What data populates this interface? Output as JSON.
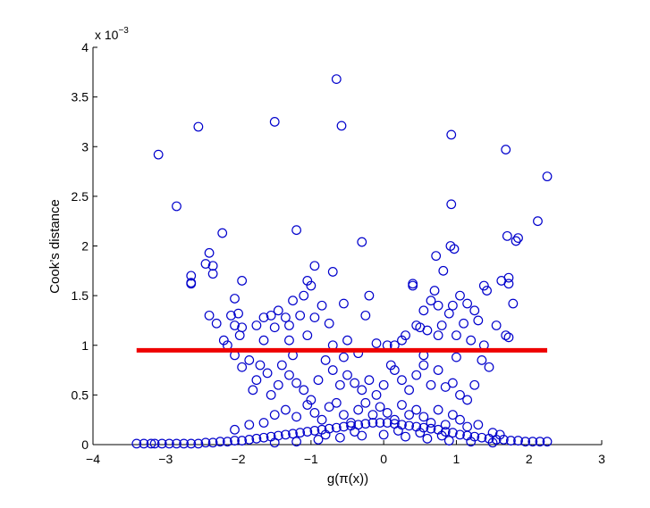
{
  "chart_data": {
    "type": "scatter",
    "xlabel": "g(π(x))",
    "ylabel": "Cook’s distance",
    "xlim": [
      -4,
      3
    ],
    "ylim": [
      0,
      4
    ],
    "x_ticks": [
      "−4",
      "−3",
      "−2",
      "−1",
      "0",
      "1",
      "2",
      "3"
    ],
    "y_ticks": [
      "0",
      "0.5",
      "1",
      "1.5",
      "2",
      "2.5",
      "3",
      "3.5",
      "4"
    ],
    "y_exponent_label": "x 10",
    "y_exponent_power": "−3",
    "y_scale_factor": 0.001,
    "marker": "open-circle",
    "marker_color": "#0000CC",
    "grid": false,
    "threshold_line": {
      "y": 0.95,
      "x": [
        -3.4,
        2.25
      ],
      "color": "#EE0000"
    },
    "points": [
      [
        -3.1,
        2.92
      ],
      [
        -2.85,
        2.4
      ],
      [
        -2.55,
        3.2
      ],
      [
        -2.22,
        2.13
      ],
      [
        -2.4,
        1.93
      ],
      [
        -2.35,
        1.8
      ],
      [
        -2.45,
        1.82
      ],
      [
        -2.65,
        1.7
      ],
      [
        -2.65,
        1.63
      ],
      [
        -2.65,
        1.62
      ],
      [
        -2.35,
        1.72
      ],
      [
        -2.05,
        1.47
      ],
      [
        -1.95,
        1.65
      ],
      [
        -2.0,
        1.32
      ],
      [
        -2.1,
        1.3
      ],
      [
        -2.4,
        1.3
      ],
      [
        -2.3,
        1.22
      ],
      [
        -2.05,
        1.2
      ],
      [
        -1.95,
        1.18
      ],
      [
        -1.98,
        1.1
      ],
      [
        -2.2,
        1.05
      ],
      [
        -2.15,
        1.0
      ],
      [
        -1.5,
        3.25
      ],
      [
        -0.65,
        3.68
      ],
      [
        -0.58,
        3.21
      ],
      [
        -1.2,
        2.16
      ],
      [
        -0.7,
        1.74
      ],
      [
        -0.95,
        1.8
      ],
      [
        -1.05,
        1.65
      ],
      [
        -1.0,
        1.6
      ],
      [
        -1.1,
        1.5
      ],
      [
        -1.25,
        1.45
      ],
      [
        -1.45,
        1.35
      ],
      [
        -1.55,
        1.3
      ],
      [
        -1.65,
        1.28
      ],
      [
        -1.35,
        1.28
      ],
      [
        -1.15,
        1.3
      ],
      [
        -0.95,
        1.28
      ],
      [
        -0.85,
        1.4
      ],
      [
        -0.55,
        1.42
      ],
      [
        -0.75,
        1.22
      ],
      [
        -1.3,
        1.2
      ],
      [
        -1.5,
        1.18
      ],
      [
        -1.75,
        1.2
      ],
      [
        -1.65,
        1.05
      ],
      [
        -1.3,
        1.05
      ],
      [
        -1.05,
        1.1
      ],
      [
        -0.7,
        1.0
      ],
      [
        -0.5,
        1.05
      ],
      [
        -0.3,
        2.04
      ],
      [
        -0.2,
        1.5
      ],
      [
        -0.25,
        1.3
      ],
      [
        -0.1,
        1.02
      ],
      [
        0.05,
        1.0
      ],
      [
        0.25,
        1.05
      ],
      [
        0.4,
        1.62
      ],
      [
        0.4,
        1.6
      ],
      [
        0.55,
        1.35
      ],
      [
        0.45,
        1.2
      ],
      [
        0.3,
        1.1
      ],
      [
        0.15,
        1.0
      ],
      [
        0.93,
        3.12
      ],
      [
        0.93,
        2.42
      ],
      [
        0.92,
        2.0
      ],
      [
        0.97,
        1.97
      ],
      [
        0.82,
        1.75
      ],
      [
        0.72,
        1.9
      ],
      [
        0.7,
        1.55
      ],
      [
        0.65,
        1.45
      ],
      [
        0.75,
        1.4
      ],
      [
        0.9,
        1.32
      ],
      [
        0.95,
        1.4
      ],
      [
        1.05,
        1.5
      ],
      [
        1.15,
        1.42
      ],
      [
        1.25,
        1.35
      ],
      [
        1.38,
        1.6
      ],
      [
        1.42,
        1.55
      ],
      [
        1.3,
        1.25
      ],
      [
        1.1,
        1.22
      ],
      [
        0.8,
        1.2
      ],
      [
        0.6,
        1.15
      ],
      [
        0.5,
        1.18
      ],
      [
        0.75,
        1.1
      ],
      [
        1.0,
        1.1
      ],
      [
        1.2,
        1.05
      ],
      [
        1.38,
        1.0
      ],
      [
        1.55,
        1.2
      ],
      [
        1.62,
        1.65
      ],
      [
        1.72,
        1.68
      ],
      [
        1.68,
        1.1
      ],
      [
        1.72,
        1.08
      ],
      [
        1.68,
        2.97
      ],
      [
        1.7,
        2.1
      ],
      [
        1.82,
        2.05
      ],
      [
        1.85,
        2.08
      ],
      [
        2.12,
        2.25
      ],
      [
        2.25,
        2.7
      ],
      [
        1.72,
        1.62
      ],
      [
        1.78,
        1.42
      ],
      [
        -1.95,
        0.78
      ],
      [
        -2.05,
        0.9
      ],
      [
        -1.85,
        0.85
      ],
      [
        -1.7,
        0.8
      ],
      [
        -1.6,
        0.72
      ],
      [
        -1.45,
        0.6
      ],
      [
        -1.8,
        0.55
      ],
      [
        -1.55,
        0.5
      ],
      [
        -1.75,
        0.65
      ],
      [
        -1.4,
        0.8
      ],
      [
        -1.3,
        0.7
      ],
      [
        -1.2,
        0.62
      ],
      [
        -1.1,
        0.55
      ],
      [
        -1.0,
        0.45
      ],
      [
        -0.9,
        0.65
      ],
      [
        -0.8,
        0.85
      ],
      [
        -0.7,
        0.75
      ],
      [
        -0.6,
        0.6
      ],
      [
        -0.5,
        0.7
      ],
      [
        -0.4,
        0.62
      ],
      [
        -0.3,
        0.55
      ],
      [
        -0.2,
        0.65
      ],
      [
        -0.1,
        0.5
      ],
      [
        0.0,
        0.6
      ],
      [
        0.1,
        0.8
      ],
      [
        0.15,
        0.75
      ],
      [
        0.25,
        0.65
      ],
      [
        0.35,
        0.55
      ],
      [
        0.45,
        0.7
      ],
      [
        0.55,
        0.8
      ],
      [
        0.65,
        0.6
      ],
      [
        0.75,
        0.75
      ],
      [
        0.85,
        0.58
      ],
      [
        0.95,
        0.62
      ],
      [
        1.05,
        0.5
      ],
      [
        1.15,
        0.45
      ],
      [
        1.25,
        0.6
      ],
      [
        1.35,
        0.85
      ],
      [
        1.45,
        0.78
      ],
      [
        -1.25,
        0.9
      ],
      [
        -0.55,
        0.88
      ],
      [
        -0.35,
        0.92
      ],
      [
        0.55,
        0.9
      ],
      [
        1.0,
        0.88
      ],
      [
        -2.05,
        0.15
      ],
      [
        -1.85,
        0.2
      ],
      [
        -1.65,
        0.22
      ],
      [
        -1.5,
        0.3
      ],
      [
        -1.35,
        0.35
      ],
      [
        -1.2,
        0.28
      ],
      [
        -1.05,
        0.4
      ],
      [
        -0.95,
        0.32
      ],
      [
        -0.85,
        0.25
      ],
      [
        -0.75,
        0.38
      ],
      [
        -0.65,
        0.42
      ],
      [
        -0.55,
        0.3
      ],
      [
        -0.45,
        0.22
      ],
      [
        -0.35,
        0.35
      ],
      [
        -0.25,
        0.42
      ],
      [
        -0.15,
        0.3
      ],
      [
        -0.05,
        0.38
      ],
      [
        0.05,
        0.32
      ],
      [
        0.15,
        0.25
      ],
      [
        0.25,
        0.4
      ],
      [
        0.35,
        0.3
      ],
      [
        0.45,
        0.35
      ],
      [
        0.55,
        0.28
      ],
      [
        0.65,
        0.22
      ],
      [
        0.75,
        0.35
      ],
      [
        0.85,
        0.2
      ],
      [
        0.95,
        0.3
      ],
      [
        1.05,
        0.25
      ],
      [
        1.15,
        0.18
      ],
      [
        1.3,
        0.2
      ],
      [
        1.5,
        0.12
      ],
      [
        1.6,
        0.1
      ],
      [
        -3.4,
        0.01
      ],
      [
        -3.3,
        0.01
      ],
      [
        -3.2,
        0.01
      ],
      [
        -3.15,
        0.01
      ],
      [
        -3.05,
        0.01
      ],
      [
        -2.95,
        0.01
      ],
      [
        -2.85,
        0.01
      ],
      [
        -2.75,
        0.01
      ],
      [
        -2.65,
        0.01
      ],
      [
        -2.55,
        0.01
      ],
      [
        -2.45,
        0.02
      ],
      [
        -2.35,
        0.02
      ],
      [
        -2.25,
        0.03
      ],
      [
        -2.15,
        0.03
      ],
      [
        -2.05,
        0.04
      ],
      [
        -1.95,
        0.04
      ],
      [
        -1.85,
        0.05
      ],
      [
        -1.75,
        0.06
      ],
      [
        -1.65,
        0.07
      ],
      [
        -1.55,
        0.08
      ],
      [
        -1.45,
        0.09
      ],
      [
        -1.35,
        0.1
      ],
      [
        -1.25,
        0.11
      ],
      [
        -1.15,
        0.12
      ],
      [
        -1.05,
        0.13
      ],
      [
        -0.95,
        0.14
      ],
      [
        -0.85,
        0.15
      ],
      [
        -0.75,
        0.16
      ],
      [
        -0.65,
        0.17
      ],
      [
        -0.55,
        0.18
      ],
      [
        -0.45,
        0.19
      ],
      [
        -0.35,
        0.2
      ],
      [
        -0.25,
        0.21
      ],
      [
        -0.15,
        0.22
      ],
      [
        -0.05,
        0.22
      ],
      [
        0.05,
        0.22
      ],
      [
        0.15,
        0.21
      ],
      [
        0.25,
        0.2
      ],
      [
        0.35,
        0.19
      ],
      [
        0.45,
        0.18
      ],
      [
        0.55,
        0.17
      ],
      [
        0.65,
        0.16
      ],
      [
        0.75,
        0.15
      ],
      [
        0.85,
        0.13
      ],
      [
        0.95,
        0.12
      ],
      [
        1.05,
        0.1
      ],
      [
        1.15,
        0.09
      ],
      [
        1.25,
        0.08
      ],
      [
        1.35,
        0.07
      ],
      [
        1.45,
        0.06
      ],
      [
        1.55,
        0.05
      ],
      [
        1.65,
        0.05
      ],
      [
        1.75,
        0.04
      ],
      [
        1.85,
        0.04
      ],
      [
        1.95,
        0.03
      ],
      [
        2.05,
        0.03
      ],
      [
        2.15,
        0.03
      ],
      [
        2.25,
        0.03
      ],
      [
        -1.5,
        0.02
      ],
      [
        -1.2,
        0.03
      ],
      [
        -0.9,
        0.05
      ],
      [
        -0.6,
        0.07
      ],
      [
        -0.3,
        0.09
      ],
      [
        0.0,
        0.1
      ],
      [
        0.3,
        0.08
      ],
      [
        0.6,
        0.06
      ],
      [
        0.9,
        0.04
      ],
      [
        1.2,
        0.03
      ],
      [
        1.5,
        0.02
      ],
      [
        -0.8,
        0.1
      ],
      [
        -0.4,
        0.13
      ],
      [
        0.2,
        0.14
      ],
      [
        0.5,
        0.12
      ],
      [
        0.8,
        0.09
      ]
    ]
  }
}
